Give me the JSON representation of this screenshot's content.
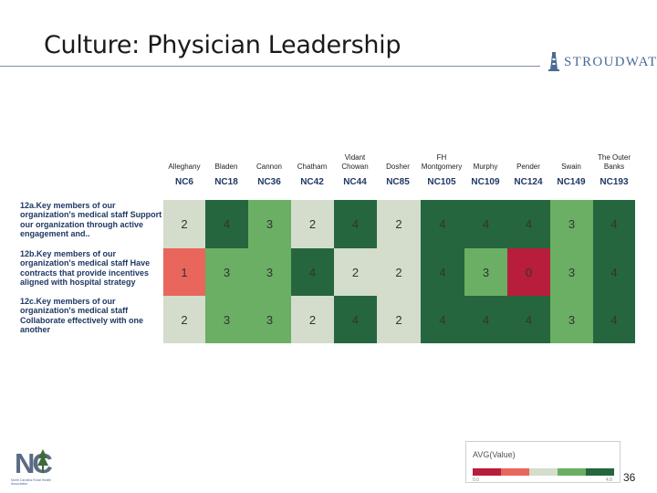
{
  "slide": {
    "title": "Culture:  Physician Leadership",
    "page_number": "36"
  },
  "brand": {
    "name": "STROUDWATER"
  },
  "counties": [
    {
      "name": "Alleghany",
      "code": "NC6"
    },
    {
      "name": "Bladen",
      "code": "NC18"
    },
    {
      "name": "Cannon",
      "code": "NC36"
    },
    {
      "name": "Chatham",
      "code": "NC42"
    },
    {
      "name": "Vidant Chowan",
      "code": "NC44"
    },
    {
      "name": "Dosher",
      "code": "NC85"
    },
    {
      "name": "FH Montgomery",
      "code": "NC105"
    },
    {
      "name": "Murphy",
      "code": "NC109"
    },
    {
      "name": "Pender",
      "code": "NC124"
    },
    {
      "name": "Swain",
      "code": "NC149"
    },
    {
      "name": "The Outer Banks",
      "code": "NC193"
    }
  ],
  "rows": [
    {
      "label": "12a.Key members of our organization's medical staff Support our organization through active engagement and..",
      "values": [
        "2",
        "4",
        "3",
        "2",
        "4",
        "2",
        "4",
        "4",
        "4",
        "3",
        "4"
      ]
    },
    {
      "label": "12b.Key members of our organization's medical staff Have contracts that provide incentives aligned with hospital strategy",
      "values": [
        "1",
        "3",
        "3",
        "4",
        "2",
        "2",
        "4",
        "3",
        "0",
        "3",
        "4"
      ]
    },
    {
      "label": "12c.Key members of our organization's medical staff Collaborate effectively with one another",
      "values": [
        "2",
        "3",
        "3",
        "2",
        "4",
        "2",
        "4",
        "4",
        "4",
        "3",
        "4"
      ]
    }
  ],
  "colors": {
    "v0": "#b81d3b",
    "v1": "#e8665c",
    "v2": "#d4dccb",
    "v3": "#6aaf63",
    "v4": "#25663f"
  },
  "legend": {
    "title": "AVG(Value)",
    "min": "0.0",
    "max": "4.0"
  },
  "logo": {
    "letters": "NC",
    "caption": "North Carolina Rural Health Association"
  }
}
